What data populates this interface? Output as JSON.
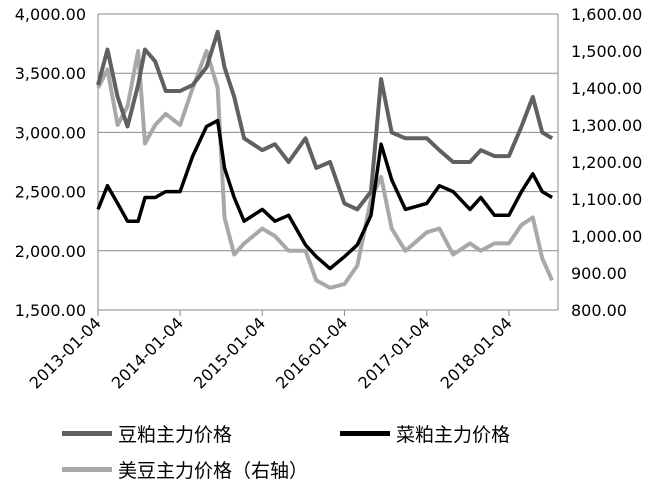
{
  "chart_data": {
    "type": "line",
    "title": "",
    "xlabel": "",
    "ylabel_left": "",
    "ylabel_right": "",
    "x_ticks": [
      "2013-01-04",
      "2014-01-04",
      "2015-01-04",
      "2016-01-04",
      "2017-01-04",
      "2018-01-04"
    ],
    "y_left": {
      "ticks": [
        "1,500.00",
        "2,000.00",
        "2,500.00",
        "3,000.00",
        "3,500.00",
        "4,000.00"
      ],
      "range": [
        1500,
        4000
      ]
    },
    "y_right": {
      "ticks": [
        "800.00",
        "900.00",
        "1,000.00",
        "1,100.00",
        "1,200.00",
        "1,300.00",
        "1,400.00",
        "1,500.00",
        "1,600.00"
      ],
      "range": [
        800,
        1600
      ]
    },
    "grid": "horizontal",
    "legend_position": "bottom",
    "series": [
      {
        "name": "豆粕主力价格",
        "axis": "left",
        "color": "#606060",
        "x": [
          "2013-01-04",
          "2013-02-15",
          "2013-04-01",
          "2013-05-15",
          "2013-07-01",
          "2013-08-01",
          "2013-09-15",
          "2013-11-01",
          "2014-01-04",
          "2014-03-01",
          "2014-05-01",
          "2014-06-20",
          "2014-07-20",
          "2014-09-01",
          "2014-10-15",
          "2015-01-04",
          "2015-03-01",
          "2015-05-01",
          "2015-07-15",
          "2015-09-01",
          "2015-11-01",
          "2016-01-04",
          "2016-03-01",
          "2016-05-01",
          "2016-06-15",
          "2016-08-01",
          "2016-10-01",
          "2017-01-04",
          "2017-03-01",
          "2017-05-01",
          "2017-07-15",
          "2017-09-01",
          "2017-11-01",
          "2018-01-04",
          "2018-03-01",
          "2018-04-20",
          "2018-06-01",
          "2018-07-15"
        ],
        "values": [
          3400,
          3700,
          3300,
          3050,
          3400,
          3700,
          3600,
          3350,
          3350,
          3400,
          3550,
          3850,
          3550,
          3300,
          2950,
          2850,
          2900,
          2750,
          2950,
          2700,
          2750,
          2400,
          2350,
          2500,
          3450,
          3000,
          2950,
          2950,
          2850,
          2750,
          2750,
          2850,
          2800,
          2800,
          3050,
          3300,
          3000,
          2950
        ]
      },
      {
        "name": "菜粕主力价格",
        "axis": "left",
        "color": "#000000",
        "x": [
          "2013-01-04",
          "2013-02-15",
          "2013-04-01",
          "2013-05-15",
          "2013-07-01",
          "2013-08-01",
          "2013-09-15",
          "2013-11-01",
          "2014-01-04",
          "2014-03-01",
          "2014-05-01",
          "2014-06-20",
          "2014-07-20",
          "2014-09-01",
          "2014-10-15",
          "2015-01-04",
          "2015-03-01",
          "2015-05-01",
          "2015-07-15",
          "2015-09-01",
          "2015-11-01",
          "2016-01-04",
          "2016-03-01",
          "2016-05-01",
          "2016-06-15",
          "2016-08-01",
          "2016-10-01",
          "2017-01-04",
          "2017-03-01",
          "2017-05-01",
          "2017-07-15",
          "2017-09-01",
          "2017-11-01",
          "2018-01-04",
          "2018-03-01",
          "2018-04-20",
          "2018-06-01",
          "2018-07-15"
        ],
        "values": [
          2350,
          2550,
          2400,
          2250,
          2250,
          2450,
          2450,
          2500,
          2500,
          2800,
          3050,
          3100,
          2700,
          2450,
          2250,
          2350,
          2250,
          2300,
          2050,
          1950,
          1850,
          1950,
          2050,
          2300,
          2900,
          2600,
          2350,
          2400,
          2550,
          2500,
          2350,
          2450,
          2300,
          2300,
          2500,
          2650,
          2500,
          2450
        ]
      },
      {
        "name": "美豆主力价格（右轴）",
        "axis": "right",
        "color": "#a8a8a8",
        "x": [
          "2013-01-04",
          "2013-02-15",
          "2013-04-01",
          "2013-05-15",
          "2013-07-01",
          "2013-08-01",
          "2013-09-15",
          "2013-11-01",
          "2014-01-04",
          "2014-03-01",
          "2014-05-01",
          "2014-06-20",
          "2014-07-20",
          "2014-09-01",
          "2014-10-15",
          "2015-01-04",
          "2015-03-01",
          "2015-05-01",
          "2015-07-15",
          "2015-09-01",
          "2015-11-01",
          "2016-01-04",
          "2016-03-01",
          "2016-05-01",
          "2016-06-15",
          "2016-08-01",
          "2016-10-01",
          "2017-01-04",
          "2017-03-01",
          "2017-05-01",
          "2017-07-15",
          "2017-09-01",
          "2017-11-01",
          "2018-01-04",
          "2018-03-01",
          "2018-04-20",
          "2018-06-01",
          "2018-07-15"
        ],
        "values": [
          1400,
          1450,
          1300,
          1350,
          1500,
          1250,
          1300,
          1330,
          1300,
          1400,
          1500,
          1400,
          1050,
          950,
          980,
          1020,
          1000,
          960,
          960,
          880,
          860,
          870,
          920,
          1100,
          1160,
          1020,
          960,
          1010,
          1020,
          950,
          980,
          960,
          980,
          980,
          1030,
          1050,
          940,
          880
        ]
      }
    ]
  }
}
